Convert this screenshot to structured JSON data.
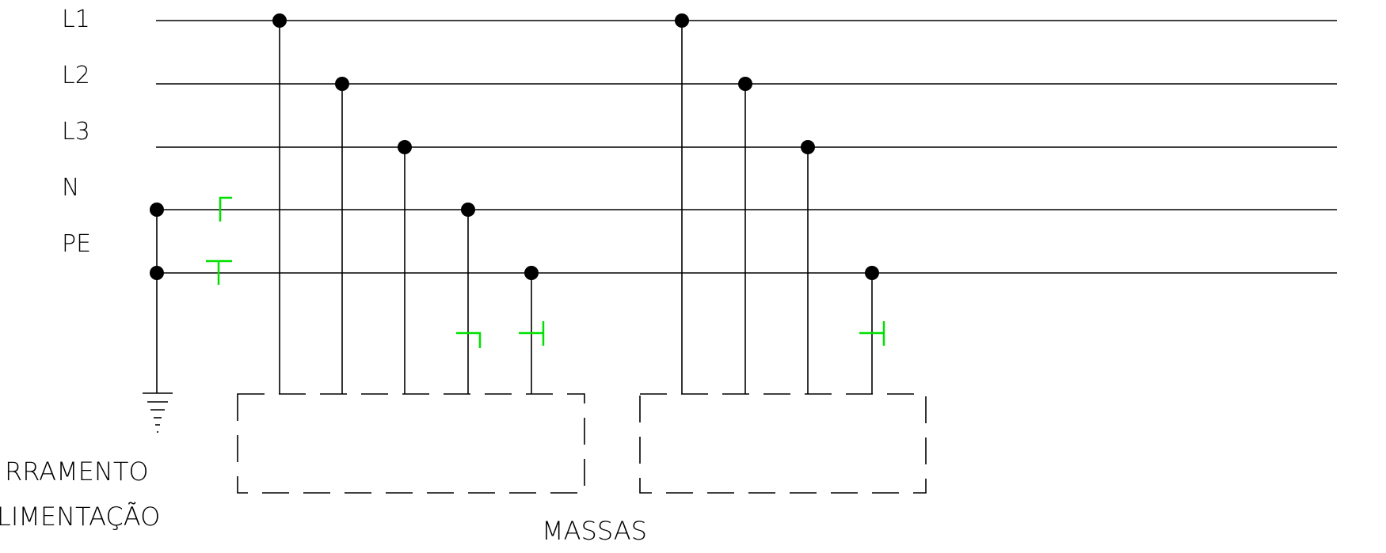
{
  "conductors": [
    {
      "label": "L1"
    },
    {
      "label": "L2"
    },
    {
      "label": "L3"
    },
    {
      "label": "N"
    },
    {
      "label": "PE"
    }
  ],
  "labels": {
    "source_line1": "RRAMENTO",
    "source_line2": "LIMENTAÇÃO",
    "loads": "MASSAS"
  },
  "colors": {
    "wire": "#000000",
    "symbol": "#00e000"
  },
  "icons": [
    "ground-icon",
    "junction-dot-icon",
    "device-symbol-icon"
  ]
}
